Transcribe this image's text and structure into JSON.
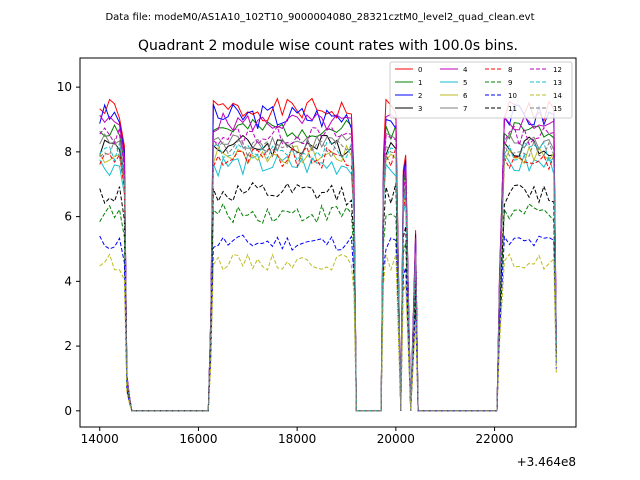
{
  "chart_data": {
    "type": "line",
    "suptitle": "Data file: modeM0/AS1A10_102T10_9000004080_28321cztM0_level2_quad_clean.evt",
    "title": "Quadrant 2 module wise count rates with 100.0s bins.",
    "xlabel": "",
    "ylabel": "",
    "offset_text": "+3.464e8",
    "xlim": [
      13600,
      23650
    ],
    "ylim": [
      -0.5,
      10.9
    ],
    "x_ticks": [
      14000,
      16000,
      18000,
      20000,
      22000
    ],
    "x_tick_labels": [
      "14000",
      "16000",
      "18000",
      "20000",
      "22000"
    ],
    "y_ticks": [
      0,
      2,
      4,
      6,
      8,
      10
    ],
    "y_tick_labels": [
      "0",
      "2",
      "4",
      "6",
      "8",
      "10"
    ],
    "legend_position": "top-right",
    "time_offset_value": 346400000,
    "bin_seconds": 100,
    "x_start": 14000,
    "x_end": 23200,
    "x_step": 100,
    "active_segments": [
      [
        14000,
        14400
      ],
      [
        16300,
        19100
      ],
      [
        19800,
        20000
      ],
      [
        22100,
        23200
      ]
    ],
    "transition_points": [
      {
        "x": 14500,
        "frac": 0.88
      },
      {
        "x": 14550,
        "frac": 0.12
      },
      {
        "x": 14600,
        "frac": 0.05
      },
      {
        "x": 14650,
        "frac": 0.0
      },
      {
        "x": 16200,
        "frac": 0.0
      },
      {
        "x": 16250,
        "frac": 0.32
      },
      {
        "x": 19150,
        "frac": 0.8
      },
      {
        "x": 19200,
        "frac": 0.0
      },
      {
        "x": 19700,
        "frac": 0.0
      },
      {
        "x": 19750,
        "frac": 0.85
      },
      {
        "x": 20150,
        "frac": 0.8
      },
      {
        "x": 20200,
        "frac": 0.85
      },
      {
        "x": 20400,
        "frac": 0.6
      },
      {
        "x": 20450,
        "frac": 0.0
      },
      {
        "x": 22050,
        "frac": 0.0
      },
      {
        "x": 22100,
        "frac": 0.45
      },
      {
        "x": 23250,
        "frac": 0.25
      }
    ],
    "series": [
      {
        "name": "0",
        "color": "#ff0000",
        "dash": "solid",
        "mean": 9.3,
        "amp": 0.35,
        "seed": 1
      },
      {
        "name": "1",
        "color": "#008000",
        "dash": "solid",
        "mean": 8.7,
        "amp": 0.3,
        "seed": 2
      },
      {
        "name": "2",
        "color": "#0000ff",
        "dash": "solid",
        "mean": 9.1,
        "amp": 0.4,
        "seed": 3
      },
      {
        "name": "3",
        "color": "#000000",
        "dash": "solid",
        "mean": 8.2,
        "amp": 0.35,
        "seed": 4
      },
      {
        "name": "4",
        "color": "#bf00bf",
        "dash": "solid",
        "mean": 8.9,
        "amp": 0.3,
        "seed": 5
      },
      {
        "name": "5",
        "color": "#17becf",
        "dash": "solid",
        "mean": 7.6,
        "amp": 0.35,
        "seed": 6
      },
      {
        "name": "6",
        "color": "#bcbd22",
        "dash": "solid",
        "mean": 7.9,
        "amp": 0.3,
        "seed": 7
      },
      {
        "name": "7",
        "color": "#7f7f7f",
        "dash": "solid",
        "mean": 8.3,
        "amp": 0.3,
        "seed": 8
      },
      {
        "name": "8",
        "color": "#ff0000",
        "dash": "dashed",
        "mean": 7.8,
        "amp": 0.35,
        "seed": 9
      },
      {
        "name": "9",
        "color": "#008000",
        "dash": "dashed",
        "mean": 6.1,
        "amp": 0.3,
        "seed": 10
      },
      {
        "name": "10",
        "color": "#0000ff",
        "dash": "dashed",
        "mean": 5.2,
        "amp": 0.25,
        "seed": 11
      },
      {
        "name": "11",
        "color": "#000000",
        "dash": "dashed",
        "mean": 6.7,
        "amp": 0.35,
        "seed": 12
      },
      {
        "name": "12",
        "color": "#bf00bf",
        "dash": "dashed",
        "mean": 8.5,
        "amp": 0.3,
        "seed": 13
      },
      {
        "name": "13",
        "color": "#17becf",
        "dash": "dashed",
        "mean": 8.0,
        "amp": 0.3,
        "seed": 14
      },
      {
        "name": "14",
        "color": "#bcbd22",
        "dash": "dashed",
        "mean": 4.6,
        "amp": 0.25,
        "seed": 15
      },
      {
        "name": "15",
        "color": "#7f7f7f",
        "dash": "dashed",
        "mean": 8.1,
        "amp": 0.3,
        "seed": 16
      }
    ]
  }
}
